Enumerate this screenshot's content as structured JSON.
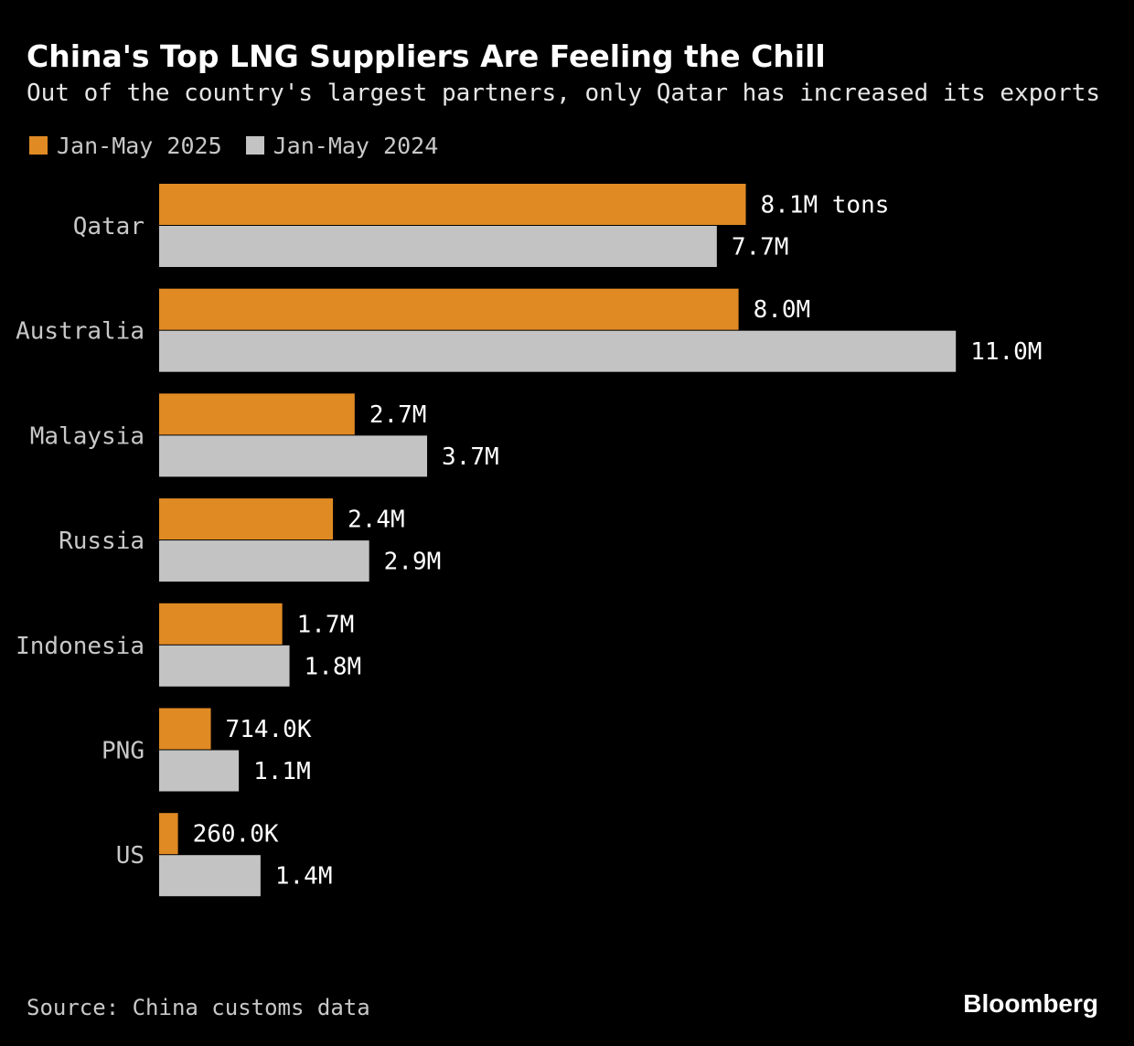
{
  "title": "China's Top LNG Suppliers Are Feeling the Chill",
  "subtitle": "Out of the country's largest partners, only Qatar has increased its exports",
  "source": "Source: China customs data",
  "brand": "Bloomberg",
  "colors": {
    "background": "#000000",
    "series_2025": "#e08a24",
    "series_2024": "#c3c3c3",
    "text": "#ffffff",
    "muted_text": "#c8c8c8"
  },
  "chart_data": {
    "type": "bar",
    "orientation": "horizontal",
    "legend_placement": "top-left",
    "grid": false,
    "xlim": [
      0,
      12
    ],
    "unit_note": "M tons",
    "categories": [
      "Qatar",
      "Australia",
      "Malaysia",
      "Russia",
      "Indonesia",
      "PNG",
      "US"
    ],
    "series": [
      {
        "name": "Jan-May 2025",
        "color": "#e08a24",
        "values": [
          8.1,
          8.0,
          2.7,
          2.4,
          1.7,
          0.714,
          0.26
        ],
        "labels": [
          "8.1M tons",
          "8.0M",
          "2.7M",
          "2.4M",
          "1.7M",
          "714.0K",
          "260.0K"
        ]
      },
      {
        "name": "Jan-May 2024",
        "color": "#c3c3c3",
        "values": [
          7.7,
          11.0,
          3.7,
          2.9,
          1.8,
          1.1,
          1.4
        ],
        "labels": [
          "7.7M",
          "11.0M",
          "3.7M",
          "2.9M",
          "1.8M",
          "1.1M",
          "1.4M"
        ]
      }
    ]
  }
}
